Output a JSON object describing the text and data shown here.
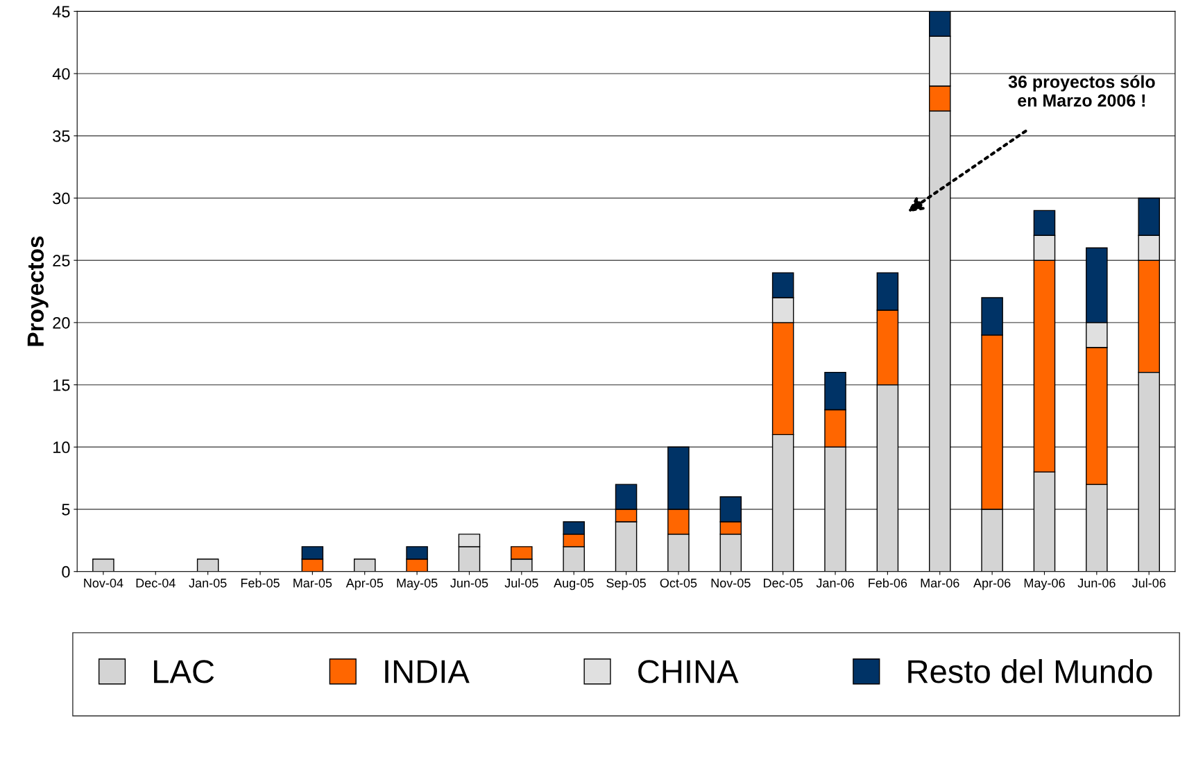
{
  "chart_data": {
    "type": "bar",
    "stacked": true,
    "ylabel": "Proyectos",
    "categories": [
      "Nov-04",
      "Dec-04",
      "Jan-05",
      "Feb-05",
      "Mar-05",
      "Apr-05",
      "May-05",
      "Jun-05",
      "Jul-05",
      "Aug-05",
      "Sep-05",
      "Oct-05",
      "Nov-05",
      "Dec-05",
      "Jan-06",
      "Feb-06",
      "Mar-06",
      "Apr-06",
      "May-06",
      "Jun-06",
      "Jul-06"
    ],
    "series": [
      {
        "name": "LAC",
        "color": "#d4d4d4",
        "values": [
          1,
          0,
          1,
          0,
          0,
          1,
          0,
          2,
          1,
          2,
          4,
          3,
          3,
          11,
          10,
          15,
          37,
          5,
          8,
          7,
          16
        ]
      },
      {
        "name": "INDIA",
        "color": "#ff6600",
        "values": [
          0,
          0,
          0,
          0,
          1,
          0,
          1,
          0,
          1,
          1,
          1,
          2,
          1,
          9,
          3,
          6,
          2,
          14,
          17,
          11,
          9
        ]
      },
      {
        "name": "CHINA",
        "color": "#e0e0e0",
        "values": [
          0,
          0,
          0,
          0,
          0,
          0,
          0,
          1,
          0,
          0,
          0,
          0,
          0,
          2,
          0,
          0,
          4,
          0,
          2,
          2,
          2
        ]
      },
      {
        "name": "Resto del Mundo",
        "color": "#003366",
        "values": [
          0,
          0,
          0,
          0,
          1,
          0,
          1,
          0,
          0,
          1,
          2,
          5,
          2,
          2,
          3,
          3,
          2,
          3,
          2,
          6,
          3
        ]
      }
    ],
    "ylim": [
      0,
      45
    ],
    "yticks": [
      0,
      5,
      10,
      15,
      20,
      25,
      30,
      35,
      40,
      45
    ],
    "grid": "y",
    "legend": "bottom",
    "annotations": [
      "36 proyectos sólo\nen Marzo 2006 !"
    ]
  }
}
